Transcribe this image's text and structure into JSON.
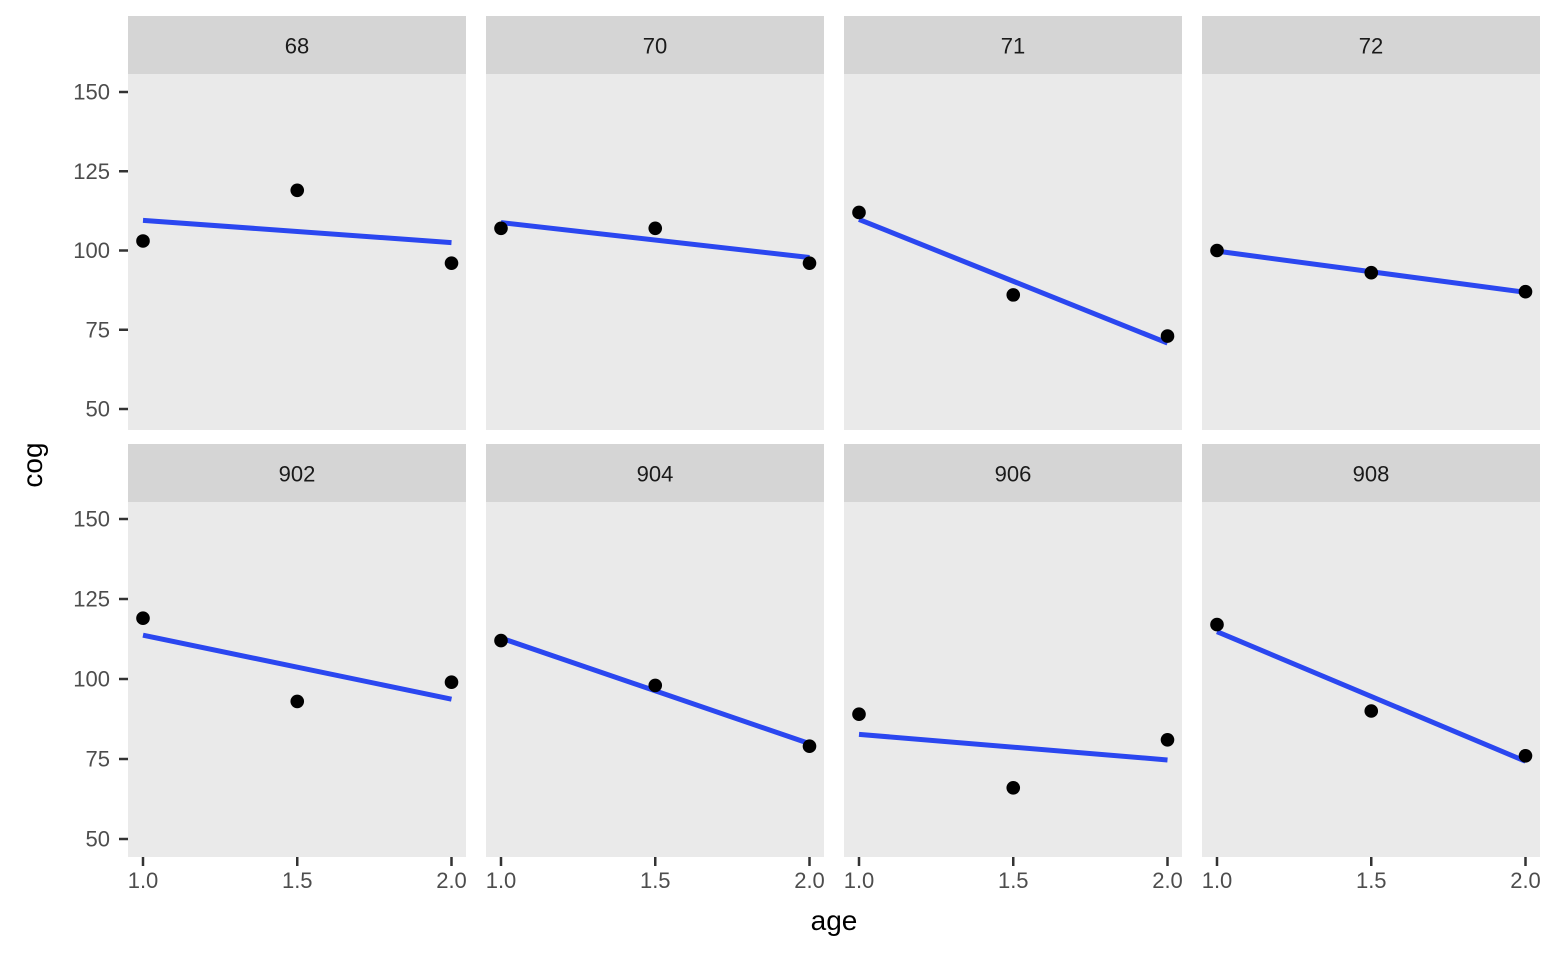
{
  "chart_data": {
    "type": "scatter",
    "description": "Faceted scatter plot of cog vs age with per-facet linear fit lines, 2 rows x 4 columns",
    "xlabel": "age",
    "ylabel": "cog",
    "x_ticks": [
      "1.0",
      "1.5",
      "2.0"
    ],
    "x_tick_values": [
      1.0,
      1.5,
      2.0
    ],
    "y_ticks": [
      "150",
      "125",
      "100",
      "75",
      "50"
    ],
    "y_tick_values": [
      150,
      125,
      100,
      75,
      50
    ],
    "x_domain": [
      0.95,
      2.05
    ],
    "y_domain": [
      44,
      156
    ],
    "grid": "off",
    "legend": "none",
    "facets": [
      {
        "label": "68",
        "points": [
          [
            1.0,
            103
          ],
          [
            1.5,
            119
          ],
          [
            2.0,
            96
          ]
        ],
        "line": [
          [
            1.0,
            109.5
          ],
          [
            2.0,
            102.5
          ]
        ]
      },
      {
        "label": "70",
        "points": [
          [
            1.0,
            107
          ],
          [
            1.5,
            107
          ],
          [
            2.0,
            96
          ]
        ],
        "line": [
          [
            1.0,
            108.8
          ],
          [
            2.0,
            97.8
          ]
        ]
      },
      {
        "label": "71",
        "points": [
          [
            1.0,
            112
          ],
          [
            1.5,
            86
          ],
          [
            2.0,
            73
          ]
        ],
        "line": [
          [
            1.0,
            109.8
          ],
          [
            2.0,
            70.8
          ]
        ]
      },
      {
        "label": "72",
        "points": [
          [
            1.0,
            100
          ],
          [
            1.5,
            93
          ],
          [
            2.0,
            87
          ]
        ],
        "line": [
          [
            1.0,
            99.8
          ],
          [
            2.0,
            86.8
          ]
        ]
      },
      {
        "label": "902",
        "points": [
          [
            1.0,
            119
          ],
          [
            1.5,
            93
          ],
          [
            2.0,
            99
          ]
        ],
        "line": [
          [
            1.0,
            113.7
          ],
          [
            2.0,
            93.7
          ]
        ]
      },
      {
        "label": "904",
        "points": [
          [
            1.0,
            112
          ],
          [
            1.5,
            98
          ],
          [
            2.0,
            79
          ]
        ],
        "line": [
          [
            1.0,
            112.8
          ],
          [
            2.0,
            79.8
          ]
        ]
      },
      {
        "label": "906",
        "points": [
          [
            1.0,
            89
          ],
          [
            1.5,
            66
          ],
          [
            2.0,
            81
          ]
        ],
        "line": [
          [
            1.0,
            82.7
          ],
          [
            2.0,
            74.7
          ]
        ]
      },
      {
        "label": "908",
        "points": [
          [
            1.0,
            117
          ],
          [
            1.5,
            90
          ],
          [
            2.0,
            76
          ]
        ],
        "line": [
          [
            1.0,
            114.8
          ],
          [
            2.0,
            74.3
          ]
        ]
      }
    ],
    "colors": {
      "line": "#2b47f0",
      "point": "#000000",
      "panel_bg": "#EAEAEA",
      "strip_bg": "#D5D5D5",
      "tick_text": "#4D4D4D",
      "strip_text": "#1A1A1A",
      "axis_title": "#000000",
      "tick_mark": "#333333"
    }
  }
}
